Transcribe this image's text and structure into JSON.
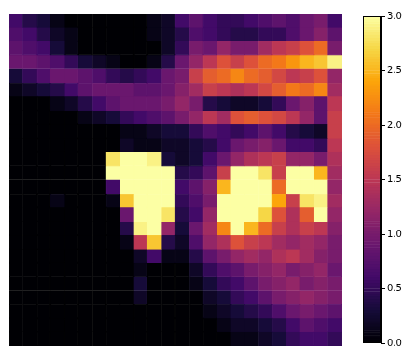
{
  "chart_data": {
    "type": "heatmap",
    "color": "inferno",
    "tick_labels": false,
    "values": [
      [
        0.6,
        0.4,
        0.3,
        0.1,
        0,
        0,
        0,
        0,
        0,
        0,
        0.1,
        0.2,
        0.6,
        0.8,
        0.6,
        0.5,
        0.5,
        0.6,
        0.7,
        0.8,
        0.7,
        0.9,
        1.0,
        0.6
      ],
      [
        0.7,
        0.6,
        0.4,
        0.2,
        0.1,
        0,
        0,
        0,
        0,
        0,
        0.1,
        0.2,
        0.4,
        0.7,
        0.6,
        0.5,
        0.4,
        0.4,
        0.5,
        0.5,
        0.7,
        0.9,
        1.1,
        0.8
      ],
      [
        0.8,
        0.7,
        0.6,
        0.3,
        0.1,
        0,
        0,
        0,
        0,
        0,
        0,
        0.2,
        0.5,
        1.0,
        0.9,
        1.2,
        1.0,
        1.0,
        1.3,
        1.5,
        1.6,
        1.8,
        2.0,
        1.0
      ],
      [
        0.9,
        0.9,
        0.8,
        0.7,
        0.5,
        0.3,
        0.2,
        0.1,
        0,
        0,
        0.1,
        0.4,
        0.9,
        1.2,
        1.5,
        1.8,
        1.6,
        1.8,
        2.0,
        2.1,
        2.3,
        2.5,
        2.6,
        2.9
      ],
      [
        0.3,
        0.5,
        0.7,
        0.9,
        0.9,
        0.8,
        0.7,
        0.5,
        0.4,
        0.5,
        0.6,
        0.9,
        1.0,
        1.6,
        1.9,
        2.0,
        2.2,
        2.0,
        1.9,
        1.7,
        1.5,
        1.6,
        1.8,
        1.2
      ],
      [
        0.1,
        0.2,
        0.3,
        0.4,
        0.6,
        0.8,
        0.9,
        0.9,
        0.9,
        0.8,
        0.8,
        0.9,
        1.1,
        1.3,
        1.6,
        1.5,
        1.4,
        1.5,
        1.7,
        1.9,
        2.1,
        2.0,
        2.2,
        1.3
      ],
      [
        0,
        0,
        0,
        0.1,
        0.2,
        0.4,
        0.6,
        0.8,
        0.9,
        0.9,
        0.9,
        1.0,
        1.2,
        1.0,
        0.4,
        0.3,
        0.2,
        0.2,
        0.3,
        0.5,
        0.9,
        1.1,
        0.8,
        1.5
      ],
      [
        0,
        0,
        0,
        0,
        0,
        0.1,
        0.2,
        0.3,
        0.5,
        0.6,
        0.7,
        0.8,
        1.0,
        1.2,
        1.5,
        1.3,
        1.8,
        1.9,
        1.8,
        1.7,
        1.5,
        1.2,
        0.8,
        1.6
      ],
      [
        0,
        0,
        0,
        0,
        0,
        0,
        0,
        0,
        0.1,
        0.1,
        0.2,
        0.3,
        0.3,
        0.5,
        0.7,
        0.6,
        0.5,
        0.6,
        0.8,
        0.6,
        0.4,
        0.3,
        0.2,
        1.6
      ],
      [
        0,
        0,
        0,
        0,
        0,
        0,
        0,
        0,
        0.2,
        0.1,
        0.1,
        0.2,
        0.2,
        0.3,
        0.4,
        0.6,
        0.9,
        1.0,
        1.1,
        0.9,
        0.6,
        0.6,
        0.5,
        1.5
      ],
      [
        0,
        0,
        0,
        0,
        0,
        0,
        0,
        2.8,
        3,
        3,
        2.9,
        0.3,
        0.2,
        0.3,
        0.6,
        0.9,
        1.2,
        1.4,
        1.5,
        1.6,
        1.2,
        1.2,
        1.0,
        1.4
      ],
      [
        0,
        0,
        0,
        0,
        0,
        0,
        0,
        3,
        3,
        3,
        3,
        3,
        0.4,
        0.5,
        0.8,
        1.6,
        3,
        3,
        2.8,
        1.6,
        3,
        3,
        2.5,
        1.3
      ],
      [
        0,
        0,
        0,
        0,
        0,
        0,
        0,
        0.6,
        3,
        3,
        3,
        3,
        0.6,
        0.8,
        1.1,
        2.5,
        3,
        3,
        3,
        2.0,
        3,
        3,
        3,
        1.2
      ],
      [
        0,
        0,
        0,
        0.1,
        0,
        0,
        0,
        0.1,
        2.6,
        3,
        3,
        3,
        0.5,
        0.7,
        1.0,
        3,
        3,
        3,
        3,
        2.4,
        1.6,
        2.8,
        2.9,
        1.3
      ],
      [
        0,
        0,
        0,
        0,
        0,
        0,
        0,
        0,
        0.9,
        3,
        3,
        2.8,
        0.4,
        0.6,
        1.2,
        3,
        3,
        3,
        2.7,
        1.8,
        1.4,
        1.9,
        3,
        1.2
      ],
      [
        0,
        0,
        0,
        0,
        0,
        0,
        0,
        0,
        0.4,
        2.9,
        3,
        1.2,
        0.3,
        0.9,
        1.3,
        2.2,
        3,
        2.5,
        2.0,
        1.6,
        1.4,
        1.6,
        1.5,
        1.1
      ],
      [
        0,
        0,
        0,
        0,
        0,
        0,
        0,
        0,
        0.1,
        1.5,
        2.6,
        0.4,
        0.2,
        0.7,
        1.2,
        1.4,
        1.8,
        1.6,
        1.5,
        1.3,
        1.2,
        1.3,
        1.2,
        1.0
      ],
      [
        0,
        0,
        0,
        0,
        0,
        0,
        0,
        0,
        0,
        0.2,
        0.6,
        0.1,
        0.1,
        0.4,
        0.8,
        1.0,
        1.2,
        1.3,
        1.2,
        1.4,
        1.5,
        1.3,
        1.1,
        1.0
      ],
      [
        0,
        0,
        0,
        0,
        0,
        0,
        0,
        0,
        0,
        0.1,
        0,
        0,
        0,
        0.2,
        0.5,
        0.7,
        0.8,
        1.0,
        1.1,
        1.2,
        1.0,
        1.1,
        1.2,
        0.9
      ],
      [
        0,
        0,
        0,
        0,
        0,
        0,
        0,
        0,
        0,
        0.3,
        0,
        0,
        0,
        0.1,
        0.3,
        0.5,
        0.6,
        0.8,
        1.0,
        1.1,
        1.2,
        1.0,
        1.1,
        1.0
      ],
      [
        0,
        0,
        0,
        0,
        0,
        0,
        0,
        0,
        0,
        0.2,
        0,
        0,
        0,
        0,
        0.2,
        0.3,
        0.5,
        0.6,
        0.8,
        1.0,
        1.1,
        1.2,
        1.1,
        1.0
      ],
      [
        0,
        0,
        0,
        0,
        0,
        0,
        0,
        0,
        0,
        0,
        0,
        0,
        0,
        0,
        0.1,
        0.2,
        0.3,
        0.4,
        0.5,
        0.7,
        0.9,
        1.0,
        0.9,
        0.8
      ],
      [
        0,
        0,
        0,
        0,
        0,
        0,
        0,
        0,
        0,
        0,
        0,
        0,
        0,
        0,
        0,
        0.1,
        0.2,
        0.2,
        0.3,
        0.4,
        0.6,
        0.8,
        0.7,
        0.6
      ],
      [
        0,
        0,
        0,
        0,
        0,
        0,
        0,
        0,
        0,
        0,
        0,
        0,
        0,
        0,
        0,
        0,
        0.1,
        0.1,
        0.2,
        0.3,
        0.5,
        0.6,
        0.6,
        0.5
      ]
    ],
    "colorbar": {
      "range": [
        0,
        3
      ],
      "ticks": [
        {
          "value": 0,
          "label": "0.0"
        },
        {
          "value": 0.5,
          "label": "0.5"
        },
        {
          "value": 1,
          "label": "1.0"
        },
        {
          "value": 1.5,
          "label": "1.5"
        },
        {
          "value": 2,
          "label": "2.0"
        },
        {
          "value": 2.5,
          "label": "2.5"
        },
        {
          "value": 3,
          "label": "3.0"
        }
      ]
    }
  }
}
